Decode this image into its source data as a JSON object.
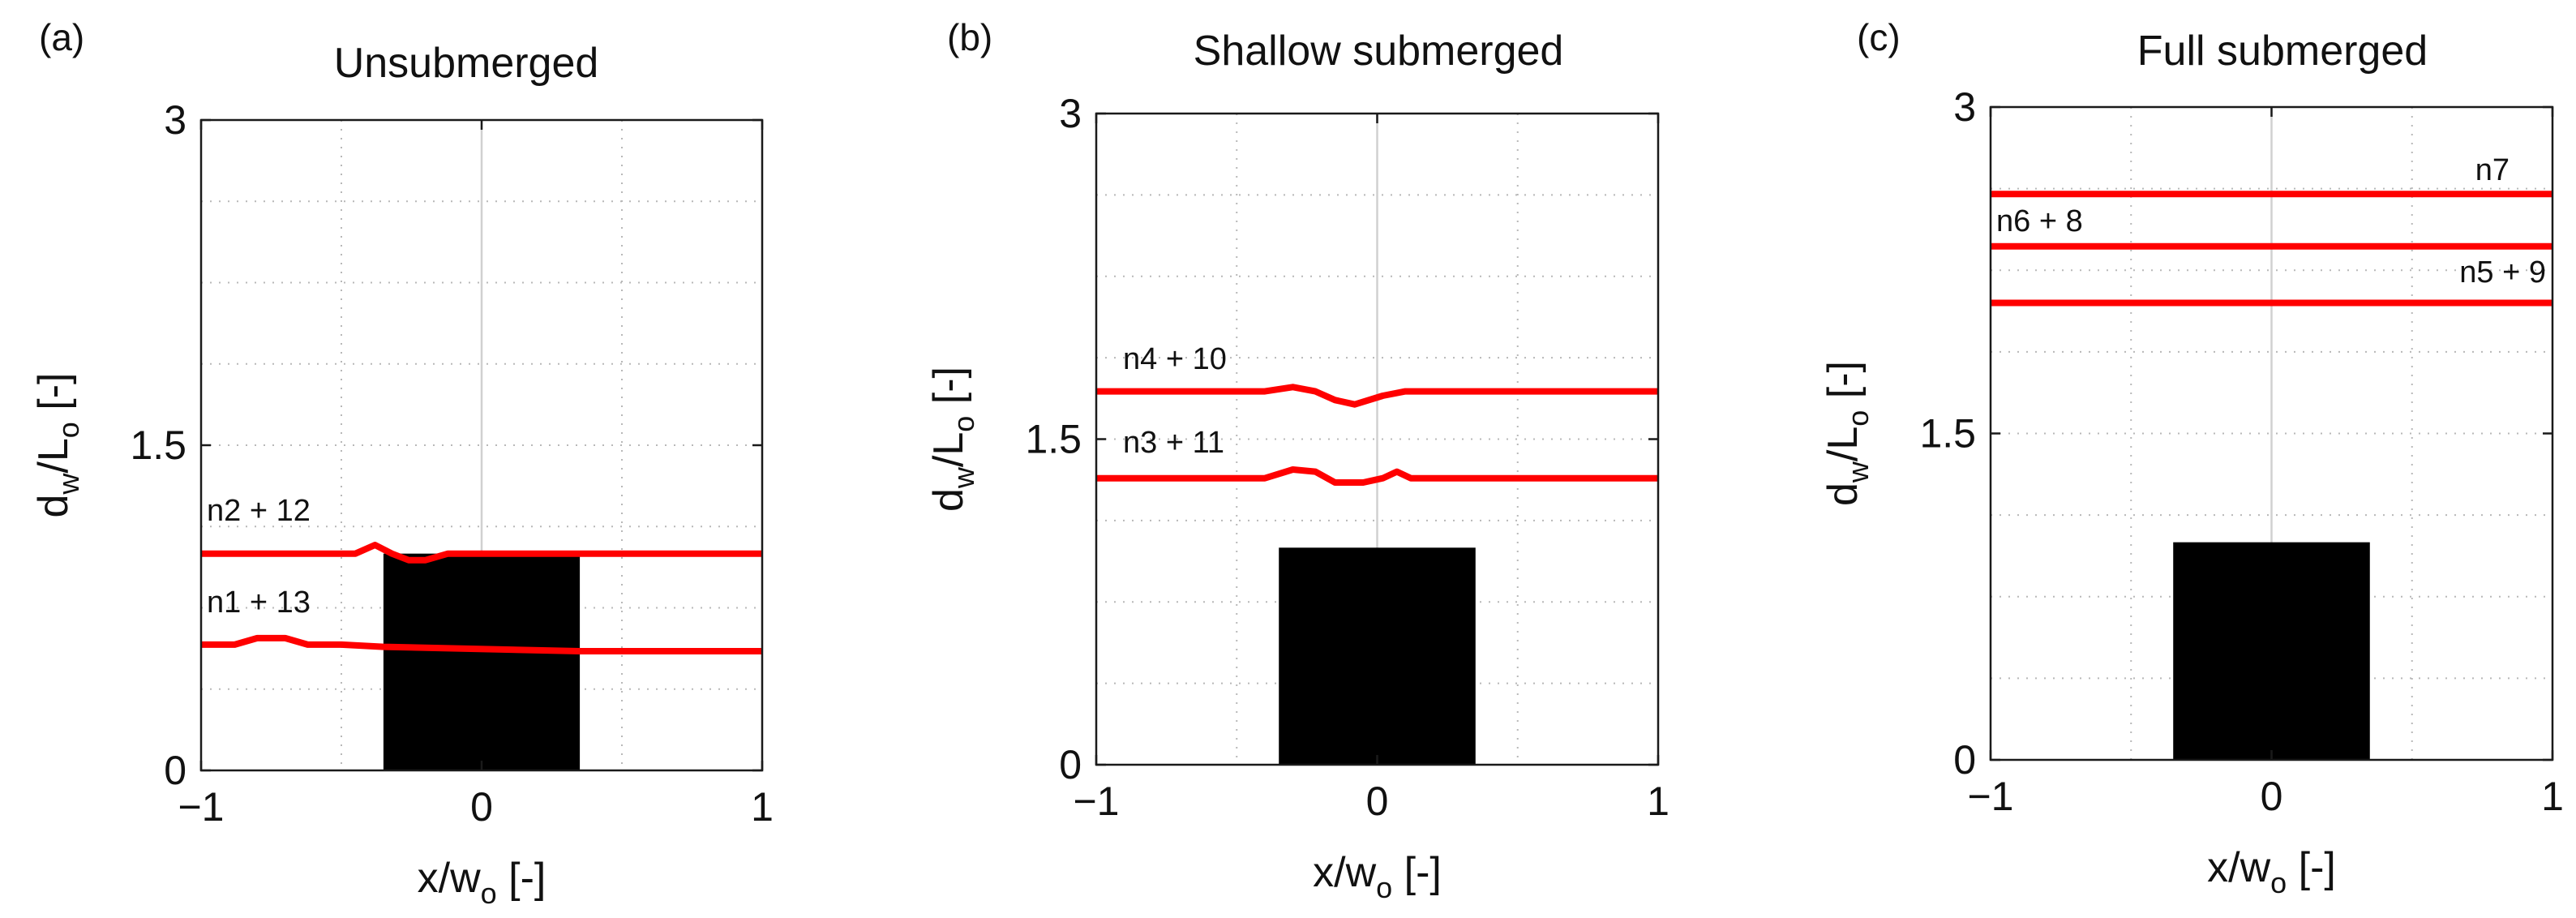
{
  "chart_data": [
    {
      "type": "line",
      "panel": "(a)",
      "title": "Unsubmerged",
      "xlabel": {
        "base": "x/w",
        "sub": "o",
        "unit": " [-]"
      },
      "ylabel": {
        "d": "d",
        "d_sub": "w",
        "mid": "/L",
        "l_sub": "o",
        "unit": " [-]"
      },
      "xlim": [
        -1,
        1
      ],
      "ylim": [
        0,
        3
      ],
      "xticks": [
        "-1",
        "0",
        "1"
      ],
      "yticks": [
        "0",
        "1.5",
        "3"
      ],
      "grid": true,
      "obstacle": {
        "x": [
          -0.35,
          0.35
        ],
        "y": [
          0,
          1.0
        ],
        "color": "#000000"
      },
      "series_color": "#ff0000",
      "series": [
        {
          "name": "n2 + 12",
          "x": [
            -1,
            -0.45,
            -0.38,
            -0.32,
            -0.26,
            -0.2,
            -0.12,
            -0.05,
            1
          ],
          "y": [
            1.0,
            1.0,
            1.04,
            1.0,
            0.97,
            0.97,
            1.0,
            1.0,
            1.0
          ]
        },
        {
          "name": "n1 + 13",
          "x": [
            -1,
            -0.88,
            -0.8,
            -0.7,
            -0.62,
            -0.5,
            -0.35,
            0.35,
            1
          ],
          "y": [
            0.58,
            0.58,
            0.61,
            0.61,
            0.58,
            0.58,
            0.57,
            0.55,
            0.55
          ]
        }
      ]
    },
    {
      "type": "line",
      "panel": "(b)",
      "title": "Shallow submerged",
      "xlabel": {
        "base": "x/w",
        "sub": "o",
        "unit": " [-]"
      },
      "ylabel": {
        "d": "d",
        "d_sub": "w",
        "mid": "/L",
        "l_sub": "o",
        "unit": " [-]"
      },
      "xlim": [
        -1,
        1
      ],
      "ylim": [
        0,
        3
      ],
      "xticks": [
        "-1",
        "0",
        "1"
      ],
      "yticks": [
        "0",
        "1.5",
        "3"
      ],
      "grid": true,
      "obstacle": {
        "x": [
          -0.35,
          0.35
        ],
        "y": [
          0,
          1.0
        ],
        "color": "#000000"
      },
      "series_color": "#ff0000",
      "series": [
        {
          "name": "n4 + 10",
          "x": [
            -1,
            -0.4,
            -0.3,
            -0.22,
            -0.15,
            -0.08,
            0.02,
            0.1,
            1
          ],
          "y": [
            1.72,
            1.72,
            1.74,
            1.72,
            1.68,
            1.66,
            1.7,
            1.72,
            1.72
          ]
        },
        {
          "name": "n3 + 11",
          "x": [
            -1,
            -0.4,
            -0.3,
            -0.22,
            -0.15,
            -0.05,
            0.02,
            0.07,
            0.12,
            1
          ],
          "y": [
            1.32,
            1.32,
            1.36,
            1.35,
            1.3,
            1.3,
            1.32,
            1.35,
            1.32,
            1.32
          ]
        }
      ]
    },
    {
      "type": "line",
      "panel": "(c)",
      "title": "Full submerged",
      "xlabel": {
        "base": "x/w",
        "sub": "o",
        "unit": " [-]"
      },
      "ylabel": {
        "d": "d",
        "d_sub": "w",
        "mid": "/L",
        "l_sub": "o",
        "unit": " [-]"
      },
      "xlim": [
        -1,
        1
      ],
      "ylim": [
        0,
        3
      ],
      "xticks": [
        "-1",
        "0",
        "1"
      ],
      "yticks": [
        "0",
        "1.5",
        "3"
      ],
      "grid": true,
      "obstacle": {
        "x": [
          -0.35,
          0.35
        ],
        "y": [
          0,
          1.0
        ],
        "color": "#000000"
      },
      "series_color": "#ff0000",
      "series": [
        {
          "name": "n7",
          "x": [
            -1,
            1
          ],
          "y": [
            2.6,
            2.6
          ]
        },
        {
          "name": "n6 + 8",
          "x": [
            -1,
            1
          ],
          "y": [
            2.36,
            2.36
          ]
        },
        {
          "name": "n5 + 9",
          "x": [
            -1,
            1
          ],
          "y": [
            2.1,
            2.1
          ]
        }
      ]
    }
  ]
}
